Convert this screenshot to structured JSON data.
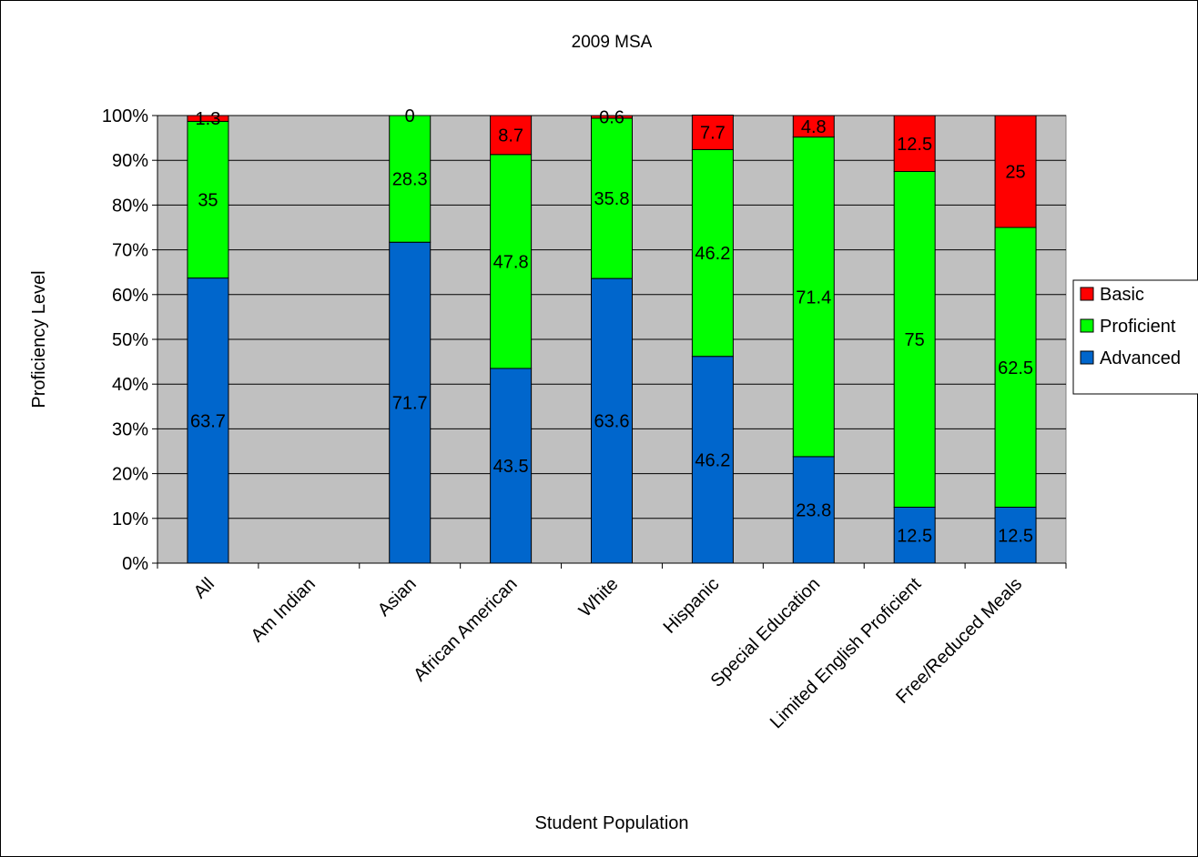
{
  "chart_data": {
    "type": "bar",
    "stacked": true,
    "title": "2009 MSA",
    "xlabel": "Student Population",
    "ylabel": "Proficiency Level",
    "ylim": [
      0,
      100
    ],
    "yticks": [
      "0%",
      "10%",
      "20%",
      "30%",
      "40%",
      "50%",
      "60%",
      "70%",
      "80%",
      "90%",
      "100%"
    ],
    "categories": [
      "All",
      "Am Indian",
      "Asian",
      "African American",
      "White",
      "Hispanic",
      "Special Education",
      "Limited English Proficient",
      "Free/Reduced Meals"
    ],
    "series": [
      {
        "name": "Advanced",
        "color": "#0066CC",
        "values": [
          63.7,
          null,
          71.7,
          43.5,
          63.6,
          46.2,
          23.8,
          12.5,
          12.5
        ]
      },
      {
        "name": "Proficient",
        "color": "#00FF00",
        "values": [
          35,
          null,
          28.3,
          47.8,
          35.8,
          46.2,
          71.4,
          75,
          62.5
        ]
      },
      {
        "name": "Basic",
        "color": "#FF0000",
        "values": [
          1.3,
          null,
          0,
          8.7,
          0.6,
          7.7,
          4.8,
          12.5,
          25
        ]
      }
    ],
    "legend_order": [
      "Basic",
      "Proficient",
      "Advanced"
    ],
    "legend_position": "right",
    "grid": true,
    "plot_background": "#C0C0C0"
  }
}
